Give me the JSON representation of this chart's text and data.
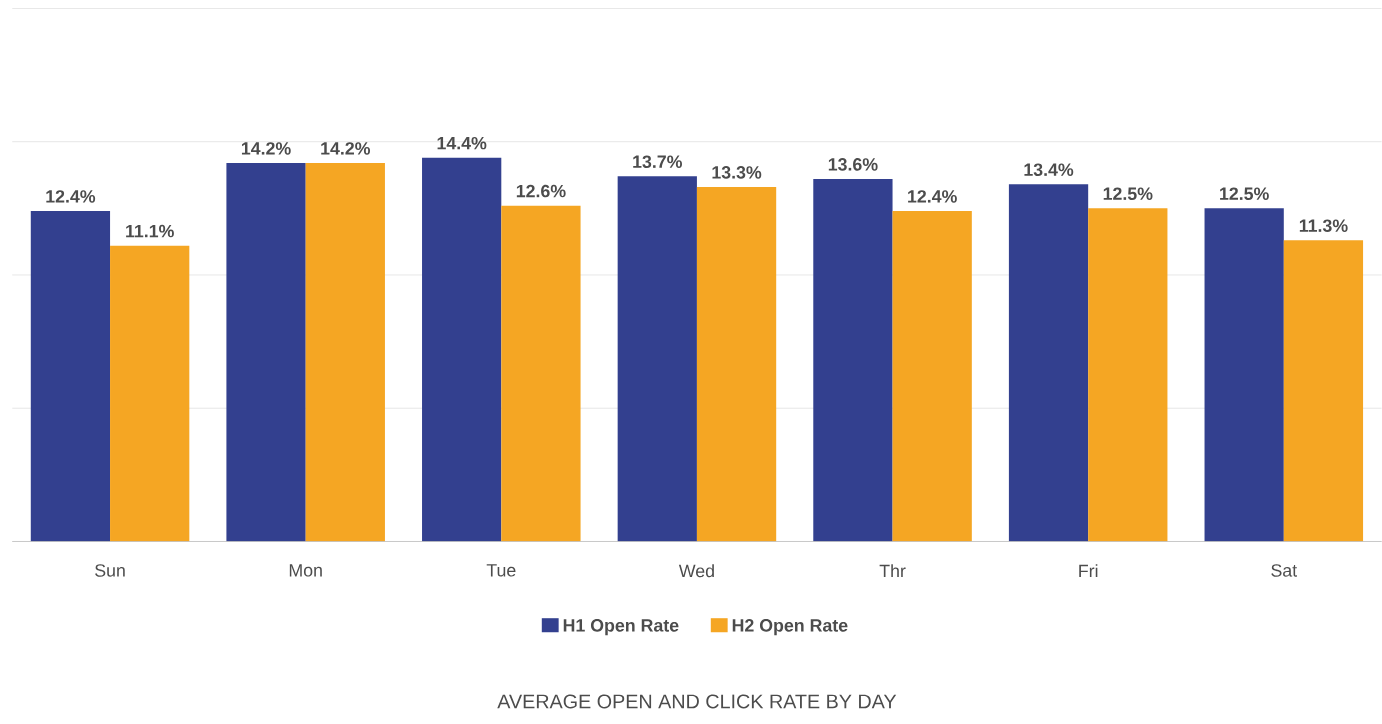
{
  "chart_data": {
    "type": "bar",
    "title": "AVERAGE OPEN AND CLICK RATE BY DAY",
    "categories": [
      "Sun",
      "Mon",
      "Tue",
      "Wed",
      "Thr",
      "Fri",
      "Sat"
    ],
    "series": [
      {
        "name": "H1 Open Rate",
        "color": "#33408f",
        "values": [
          12.4,
          14.2,
          14.4,
          13.7,
          13.6,
          13.4,
          12.5
        ],
        "value_labels": [
          "12.4%",
          "14.2%",
          "14.4%",
          "13.7%",
          "13.6%",
          "13.4%",
          "12.5%"
        ]
      },
      {
        "name": "H2 Open Rate",
        "color": "#f5a623",
        "values": [
          11.1,
          14.2,
          12.6,
          13.3,
          12.4,
          12.5,
          11.3
        ],
        "value_labels": [
          "11.1%",
          "14.2%",
          "12.6%",
          "13.3%",
          "12.4%",
          "12.5%",
          "11.3%"
        ]
      }
    ],
    "ylim": [
      0,
      20
    ],
    "yticks": [
      {
        "value": 0,
        "label": null
      },
      {
        "value": 5,
        "label": null
      },
      {
        "value": 10,
        "label": null
      },
      {
        "value": 15,
        "label": null
      },
      {
        "value": 20,
        "label": null
      }
    ],
    "grid": "y",
    "tick_labels": "x",
    "legend": "bottom"
  }
}
